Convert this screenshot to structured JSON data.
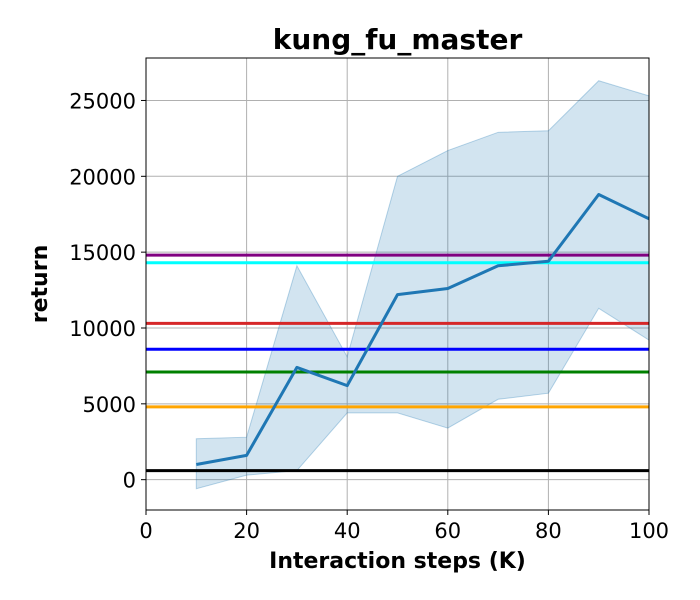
{
  "chart_data": {
    "type": "line",
    "title": "kung_fu_master",
    "xlabel": "Interaction steps (K)",
    "ylabel": "return",
    "xlim": [
      0,
      100
    ],
    "ylim": [
      -2000,
      27800
    ],
    "xticks": [
      0,
      20,
      40,
      60,
      80,
      100
    ],
    "yticks": [
      0,
      5000,
      10000,
      15000,
      20000,
      25000
    ],
    "grid": true,
    "series": [
      {
        "color": "#1f77b4",
        "x": [
          10,
          20,
          30,
          40,
          50,
          60,
          70,
          80,
          90,
          100
        ],
        "y": [
          1000,
          1600,
          7400,
          6200,
          12200,
          12600,
          14100,
          14400,
          18800,
          17200
        ],
        "band_upper": [
          2700,
          2800,
          14100,
          8100,
          20000,
          21700,
          22900,
          23000,
          26300,
          25300
        ],
        "band_lower": [
          -600,
          300,
          600,
          4400,
          4400,
          3400,
          5300,
          5700,
          11300,
          9200
        ],
        "band_color": "#1f77b4"
      }
    ],
    "hlines": [
      {
        "value": 14800,
        "color": "#800080"
      },
      {
        "value": 14300,
        "color": "#00ffff"
      },
      {
        "value": 10300,
        "color": "#d62728"
      },
      {
        "value": 8600,
        "color": "#0000ff"
      },
      {
        "value": 7100,
        "color": "#008000"
      },
      {
        "value": 4800,
        "color": "#ffa500"
      },
      {
        "value": 600,
        "color": "#000000"
      }
    ]
  }
}
